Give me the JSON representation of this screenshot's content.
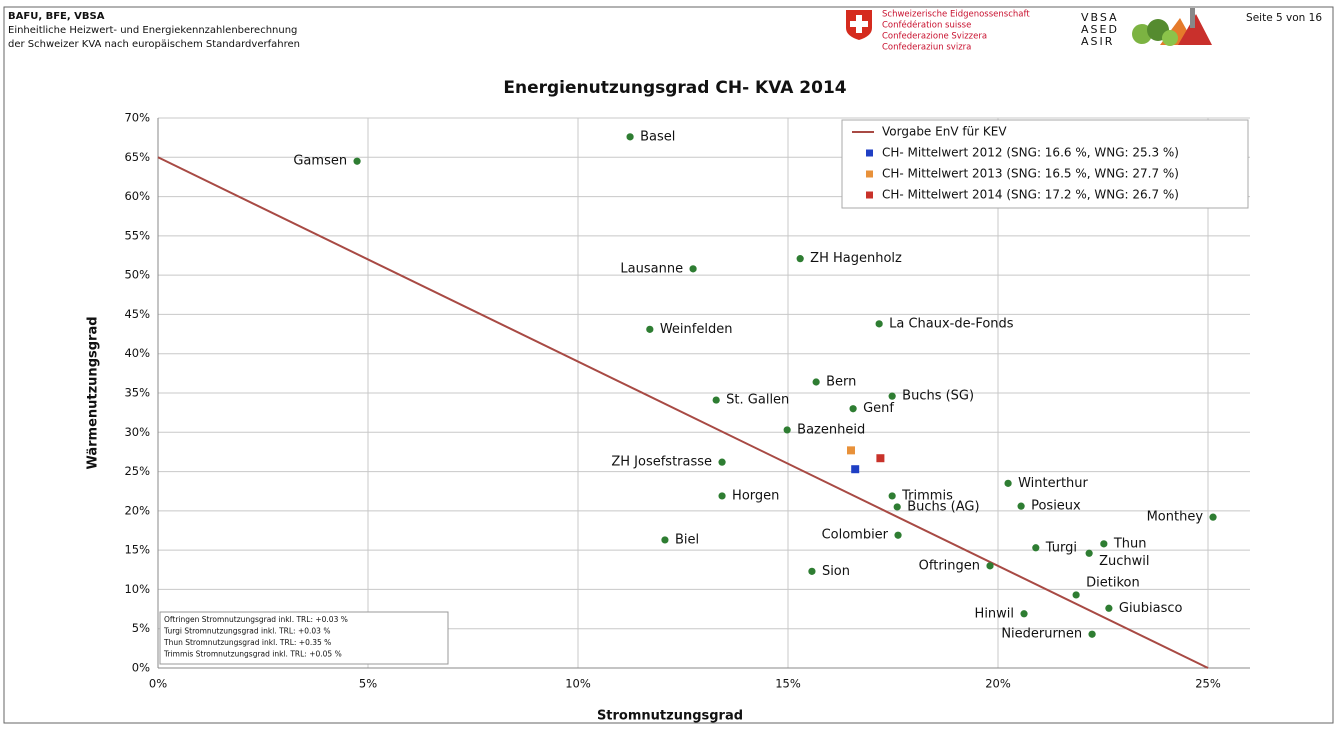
{
  "header": {
    "org": "BAFU, BFE, VBSA",
    "line1": "Einheitliche Heizwert- und Energiekennzahlenberechnung",
    "line2": "der Schweizer KVA nach europäischem Standardverfahren",
    "swiss": [
      "Schweizerische Eidgenossenschaft",
      "Confédération suisse",
      "Confederazione Svizzera",
      "Confederaziun svizra"
    ],
    "assoc": [
      "VBSA",
      "ASED",
      "ASIR"
    ],
    "page": "Seite 5 von 16"
  },
  "chart_data": {
    "type": "scatter",
    "title": "Energienutzungsgrad CH- KVA 2014",
    "x_label": "Stromnutzungsgrad",
    "y_label": "Wärmenutzungsgrad",
    "xlim": [
      0,
      26
    ],
    "ylim": [
      0,
      70
    ],
    "grid": true,
    "legend": "upper right",
    "xticks": [
      {
        "value": 0,
        "label": "0%"
      },
      {
        "value": 5,
        "label": "5%"
      },
      {
        "value": 10,
        "label": "10%"
      },
      {
        "value": 15,
        "label": "15%"
      },
      {
        "value": 20,
        "label": "20%"
      },
      {
        "value": 25,
        "label": "25%"
      }
    ],
    "yticks": [
      {
        "value": 0,
        "label": "0%"
      },
      {
        "value": 5,
        "label": "5%"
      },
      {
        "value": 10,
        "label": "10%"
      },
      {
        "value": 15,
        "label": "15%"
      },
      {
        "value": 20,
        "label": "20%"
      },
      {
        "value": 25,
        "label": "25%"
      },
      {
        "value": 30,
        "label": "30%"
      },
      {
        "value": 35,
        "label": "35%"
      },
      {
        "value": 40,
        "label": "40%"
      },
      {
        "value": 45,
        "label": "45%"
      },
      {
        "value": 50,
        "label": "50%"
      },
      {
        "value": 55,
        "label": "55%"
      },
      {
        "value": 60,
        "label": "60%"
      },
      {
        "value": 65,
        "label": "65%"
      },
      {
        "value": 70,
        "label": "70%"
      }
    ],
    "points": {
      "color": "#2e7d32",
      "labels": [
        "Gamsen",
        "Basel",
        "Lausanne",
        "ZH Hagenholz",
        "Weinfelden",
        "La Chaux-de-Fonds",
        "Bern",
        "Buchs (SG)",
        "St. Gallen",
        "Genf",
        "Bazenheid",
        "ZH Josefstrasse",
        "Winterthur",
        "Horgen",
        "Trimmis",
        "Posieux",
        "Buchs (AG)",
        "Monthey",
        "Biel",
        "Colombier",
        "Thun",
        "Turgi",
        "Zuchwil",
        "Oftringen",
        "Sion",
        "Dietikon",
        "Giubiasco",
        "Hinwil",
        "Niederurnen"
      ],
      "x": [
        4.74,
        11.24,
        12.74,
        15.29,
        11.71,
        17.17,
        15.67,
        17.48,
        13.29,
        16.55,
        14.98,
        13.43,
        20.24,
        13.43,
        17.48,
        20.55,
        17.6,
        25.12,
        12.07,
        17.62,
        22.52,
        20.9,
        22.17,
        19.81,
        15.57,
        21.86,
        22.64,
        20.62,
        22.24
      ],
      "y": [
        64.5,
        67.6,
        50.8,
        52.1,
        43.1,
        43.8,
        36.4,
        34.6,
        34.1,
        33.0,
        30.3,
        26.2,
        23.5,
        21.9,
        21.9,
        20.6,
        20.5,
        19.2,
        16.3,
        16.9,
        15.8,
        15.3,
        14.6,
        13.0,
        12.3,
        9.3,
        7.6,
        6.9,
        4.3
      ]
    },
    "series": [
      {
        "name": "Vorgabe EnV für KEV",
        "color": "#a84a44",
        "kind": "line",
        "x": [
          0,
          25
        ],
        "y": [
          65,
          0
        ]
      },
      {
        "name": "CH- Mittelwert 2012 (SNG: 16.6 %, WNG: 25.3 %)",
        "color": "#1f3fc4",
        "kind": "square",
        "x": [
          16.6
        ],
        "y": [
          25.3
        ]
      },
      {
        "name": "CH- Mittelwert 2013 (SNG: 16.5 %, WNG: 27.7 %)",
        "color": "#e8913a",
        "kind": "square",
        "x": [
          16.5
        ],
        "y": [
          27.7
        ]
      },
      {
        "name": "CH- Mittelwert 2014 (SNG: 17.2 %, WNG: 26.7 %)",
        "color": "#c8322a",
        "kind": "square",
        "x": [
          17.2
        ],
        "y": [
          26.7
        ]
      }
    ],
    "notes": [
      "Oftringen Stromnutzungsgrad inkl. TRL: +0.03 %",
      "Turgi Stromnutzungsgrad inkl. TRL: +0.03 %",
      "Thun Stromnutzungsgrad inkl. TRL: +0.35 %",
      "Trimmis Stromnutzungsgrad inkl. TRL: +0.05 %"
    ]
  }
}
